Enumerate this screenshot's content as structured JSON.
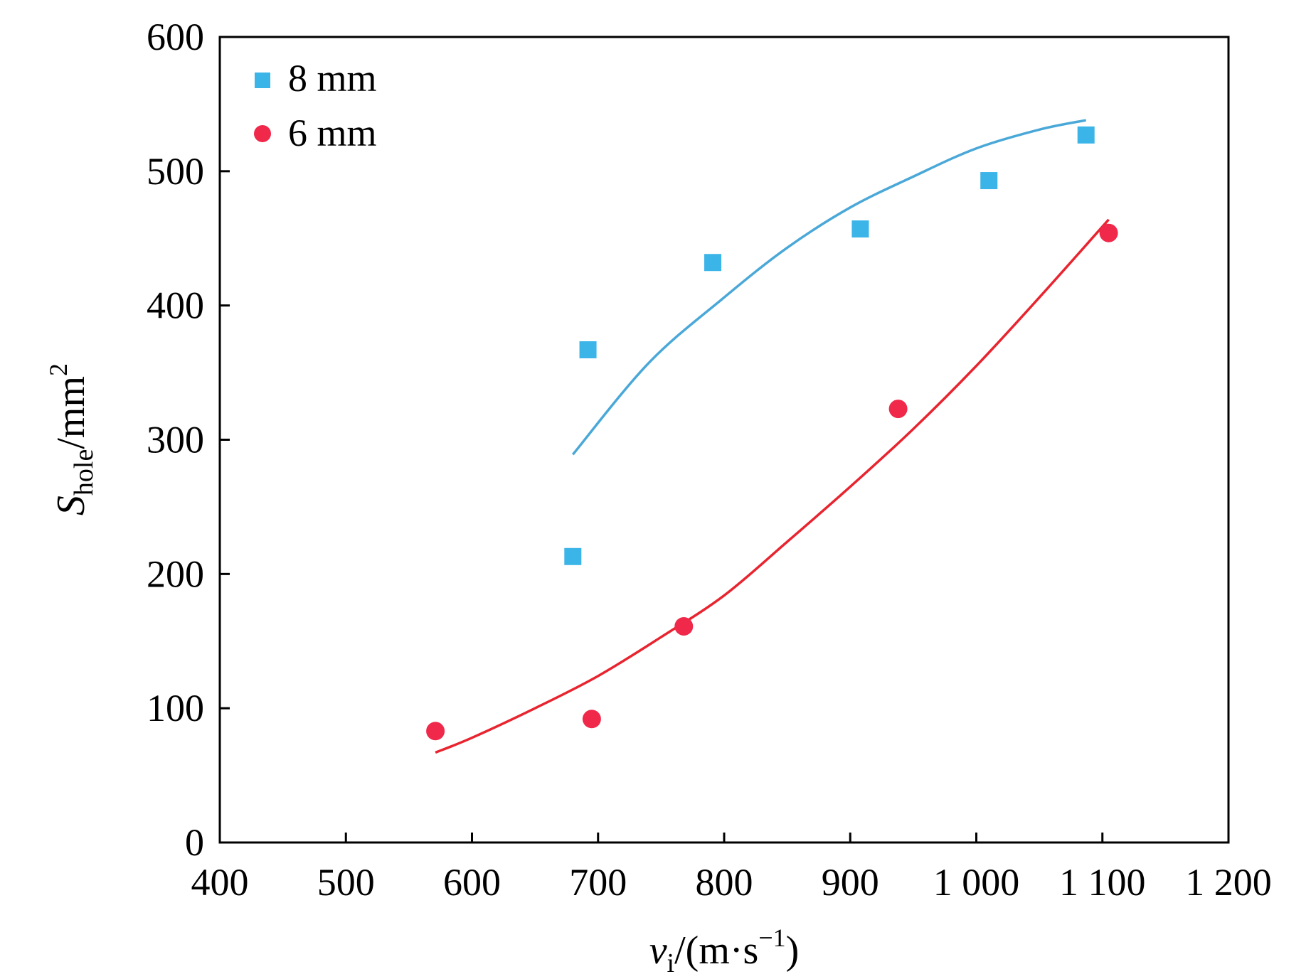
{
  "chart_data": {
    "type": "scatter",
    "title": "",
    "xlabel": {
      "main": "v",
      "sub": "i",
      "rest": "/(m·s",
      "sup": "−1",
      "close": ")"
    },
    "ylabel": {
      "main": "S",
      "sub": "hole",
      "rest": "/mm",
      "sup": "2"
    },
    "xlim": [
      400,
      1200
    ],
    "ylim": [
      0,
      600
    ],
    "x_ticks": [
      400,
      500,
      600,
      700,
      800,
      900,
      1000,
      1100,
      1200
    ],
    "x_tick_labels": [
      "400",
      "500",
      "600",
      "700",
      "800",
      "900",
      "1 000",
      "1 100",
      "1 200"
    ],
    "y_ticks": [
      0,
      100,
      200,
      300,
      400,
      500,
      600
    ],
    "y_tick_labels": [
      "0",
      "100",
      "200",
      "300",
      "400",
      "500",
      "600"
    ],
    "legend_position": "top-left",
    "series": [
      {
        "name": "8 mm",
        "marker": "square",
        "color": "#3bb4e8",
        "line_color": "#4aa8d8",
        "points": [
          [
            680,
            213
          ],
          [
            692,
            367
          ],
          [
            791,
            432
          ],
          [
            908,
            457
          ],
          [
            1010,
            493
          ],
          [
            1087,
            527
          ]
        ],
        "fit": [
          [
            680,
            289
          ],
          [
            740,
            357
          ],
          [
            800,
            406
          ],
          [
            850,
            443
          ],
          [
            900,
            473
          ],
          [
            950,
            496
          ],
          [
            1000,
            517
          ],
          [
            1050,
            531
          ],
          [
            1087,
            538
          ]
        ]
      },
      {
        "name": "6 mm",
        "marker": "circle",
        "color": "#f0284a",
        "line_color": "#e8242f",
        "points": [
          [
            571,
            83
          ],
          [
            695,
            92
          ],
          [
            768,
            161
          ],
          [
            938,
            323
          ],
          [
            1105,
            454
          ]
        ],
        "fit": [
          [
            571,
            67
          ],
          [
            600,
            78
          ],
          [
            650,
            100
          ],
          [
            700,
            124
          ],
          [
            750,
            153
          ],
          [
            800,
            184
          ],
          [
            850,
            224
          ],
          [
            900,
            265
          ],
          [
            950,
            308
          ],
          [
            1000,
            355
          ],
          [
            1050,
            406
          ],
          [
            1105,
            464
          ]
        ]
      }
    ]
  }
}
